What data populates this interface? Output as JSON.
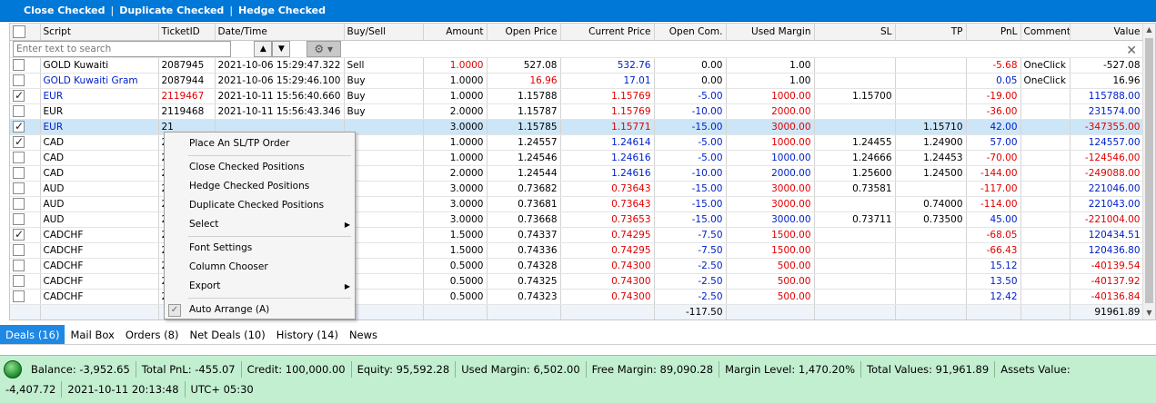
{
  "toolbar": {
    "close_checked": "Close Checked",
    "duplicate_checked": "Duplicate Checked",
    "hedge_checked": "Hedge Checked",
    "separator": "|"
  },
  "columns": [
    "Script",
    "TicketID",
    "Date/Time",
    "Buy/Sell",
    "Amount",
    "Open Price",
    "Current Price",
    "Open Com.",
    "Used Margin",
    "SL",
    "TP",
    "PnL",
    "Comment",
    "Value"
  ],
  "filter": {
    "placeholder": "Enter text to search"
  },
  "rows": [
    {
      "checked": false,
      "script": "GOLD Kuwaiti",
      "ticket": "2087945",
      "datetime": "2021-10-06 15:29:47.322",
      "side": "Sell",
      "amount": "1.0000",
      "open_price": "527.08",
      "current_price": "532.76",
      "open_com": "0.00",
      "used_margin": "1.00",
      "sl": "",
      "tp": "",
      "pnl": "-5.68",
      "comment": "OneClick",
      "value": "-527.08"
    },
    {
      "checked": false,
      "script": "GOLD Kuwaiti Gram",
      "ticket": "2087944",
      "datetime": "2021-10-06 15:29:46.100",
      "side": "Buy",
      "amount": "1.0000",
      "open_price": "16.96",
      "current_price": "17.01",
      "open_com": "0.00",
      "used_margin": "1.00",
      "sl": "",
      "tp": "",
      "pnl": "0.05",
      "comment": "OneClick",
      "value": "16.96"
    },
    {
      "checked": true,
      "script": "EUR",
      "ticket": "2119467",
      "datetime": "2021-10-11 15:56:40.660",
      "side": "Buy",
      "amount": "1.0000",
      "open_price": "1.15788",
      "current_price": "1.15769",
      "open_com": "-5.00",
      "used_margin": "1000.00",
      "sl": "1.15700",
      "tp": "",
      "pnl": "-19.00",
      "comment": "",
      "value": "115788.00"
    },
    {
      "checked": false,
      "script": "EUR",
      "ticket": "2119468",
      "datetime": "2021-10-11 15:56:43.346",
      "side": "Buy",
      "amount": "2.0000",
      "open_price": "1.15787",
      "current_price": "1.15769",
      "open_com": "-10.00",
      "used_margin": "2000.00",
      "sl": "",
      "tp": "",
      "pnl": "-36.00",
      "comment": "",
      "value": "231574.00"
    },
    {
      "checked": true,
      "script": "EUR",
      "ticket": "21",
      "datetime": "",
      "side": "",
      "amount": "3.0000",
      "open_price": "1.15785",
      "current_price": "1.15771",
      "open_com": "-15.00",
      "used_margin": "3000.00",
      "sl": "",
      "tp": "1.15710",
      "pnl": "42.00",
      "comment": "",
      "value": "-347355.00"
    },
    {
      "checked": true,
      "script": "CAD",
      "ticket": "21",
      "datetime": "",
      "side": "",
      "amount": "1.0000",
      "open_price": "1.24557",
      "current_price": "1.24614",
      "open_com": "-5.00",
      "used_margin": "1000.00",
      "sl": "1.24455",
      "tp": "1.24900",
      "pnl": "57.00",
      "comment": "",
      "value": "124557.00"
    },
    {
      "checked": false,
      "script": "CAD",
      "ticket": "21",
      "datetime": "",
      "side": "",
      "amount": "1.0000",
      "open_price": "1.24546",
      "current_price": "1.24616",
      "open_com": "-5.00",
      "used_margin": "1000.00",
      "sl": "1.24666",
      "tp": "1.24453",
      "pnl": "-70.00",
      "comment": "",
      "value": "-124546.00"
    },
    {
      "checked": false,
      "script": "CAD",
      "ticket": "21",
      "datetime": "",
      "side": "",
      "amount": "2.0000",
      "open_price": "1.24544",
      "current_price": "1.24616",
      "open_com": "-10.00",
      "used_margin": "2000.00",
      "sl": "1.25600",
      "tp": "1.24500",
      "pnl": "-144.00",
      "comment": "",
      "value": "-249088.00"
    },
    {
      "checked": false,
      "script": "AUD",
      "ticket": "21",
      "datetime": "",
      "side": "",
      "amount": "3.0000",
      "open_price": "0.73682",
      "current_price": "0.73643",
      "open_com": "-15.00",
      "used_margin": "3000.00",
      "sl": "0.73581",
      "tp": "",
      "pnl": "-117.00",
      "comment": "",
      "value": "221046.00"
    },
    {
      "checked": false,
      "script": "AUD",
      "ticket": "21",
      "datetime": "",
      "side": "",
      "amount": "3.0000",
      "open_price": "0.73681",
      "current_price": "0.73643",
      "open_com": "-15.00",
      "used_margin": "3000.00",
      "sl": "",
      "tp": "0.74000",
      "pnl": "-114.00",
      "comment": "",
      "value": "221043.00"
    },
    {
      "checked": false,
      "script": "AUD",
      "ticket": "21",
      "datetime": "",
      "side": "",
      "amount": "3.0000",
      "open_price": "0.73668",
      "current_price": "0.73653",
      "open_com": "-15.00",
      "used_margin": "3000.00",
      "sl": "0.73711",
      "tp": "0.73500",
      "pnl": "45.00",
      "comment": "",
      "value": "-221004.00"
    },
    {
      "checked": true,
      "script": "CADCHF",
      "ticket": "21",
      "datetime": "",
      "side": "",
      "amount": "1.5000",
      "open_price": "0.74337",
      "current_price": "0.74295",
      "open_com": "-7.50",
      "used_margin": "1500.00",
      "sl": "",
      "tp": "",
      "pnl": "-68.05",
      "comment": "",
      "value": "120434.51"
    },
    {
      "checked": false,
      "script": "CADCHF",
      "ticket": "21",
      "datetime": "",
      "side": "",
      "amount": "1.5000",
      "open_price": "0.74336",
      "current_price": "0.74295",
      "open_com": "-7.50",
      "used_margin": "1500.00",
      "sl": "",
      "tp": "",
      "pnl": "-66.43",
      "comment": "",
      "value": "120436.80"
    },
    {
      "checked": false,
      "script": "CADCHF",
      "ticket": "21",
      "datetime": "",
      "side": "",
      "amount": "0.5000",
      "open_price": "0.74328",
      "current_price": "0.74300",
      "open_com": "-2.50",
      "used_margin": "500.00",
      "sl": "",
      "tp": "",
      "pnl": "15.12",
      "comment": "",
      "value": "-40139.54"
    },
    {
      "checked": false,
      "script": "CADCHF",
      "ticket": "21",
      "datetime": "",
      "side": "",
      "amount": "0.5000",
      "open_price": "0.74325",
      "current_price": "0.74300",
      "open_com": "-2.50",
      "used_margin": "500.00",
      "sl": "",
      "tp": "",
      "pnl": "13.50",
      "comment": "",
      "value": "-40137.92"
    },
    {
      "checked": false,
      "script": "CADCHF",
      "ticket": "21",
      "datetime": "",
      "side": "",
      "amount": "0.5000",
      "open_price": "0.74323",
      "current_price": "0.74300",
      "open_com": "-2.50",
      "used_margin": "500.00",
      "sl": "",
      "tp": "",
      "pnl": "12.42",
      "comment": "",
      "value": "-40136.84"
    }
  ],
  "totals": {
    "open_com": "-117.50",
    "value": "91961.89"
  },
  "context_menu": {
    "place_order": "Place An SL/TP Order",
    "close_checked": "Close Checked Positions",
    "hedge_checked": "Hedge Checked Positions",
    "duplicate_checked": "Duplicate Checked Positions",
    "select": "Select",
    "font_settings": "Font Settings",
    "column_chooser": "Column Chooser",
    "export": "Export",
    "auto_arrange": "Auto Arrange (A)"
  },
  "tabs": [
    {
      "label": "Deals (16)",
      "active": true
    },
    {
      "label": "Mail Box",
      "active": false
    },
    {
      "label": "Orders (8)",
      "active": false
    },
    {
      "label": "Net Deals (10)",
      "active": false
    },
    {
      "label": "History (14)",
      "active": false
    },
    {
      "label": "News",
      "active": false
    }
  ],
  "status": {
    "balance": "Balance:  -3,952.65",
    "total_pnl": "Total PnL:  -455.07",
    "credit": "Credit:  100,000.00",
    "equity": "Equity:  95,592.28",
    "used_margin": "Used Margin:  6,502.00",
    "free_margin": "Free Margin:  89,090.28",
    "margin_level": "Margin Level:  1,470.20%",
    "total_values": "Total Values:  91,961.89",
    "assets_value": "Assets Value:",
    "assets_amount": "-4,407.72",
    "datetime": "2021-10-11 20:13:48",
    "timezone": "UTC+ 05:30"
  },
  "colors": {
    "accent": "#0078d7",
    "status_bg": "#c3efd1",
    "negative": "#e00000",
    "positive": "#0020c8"
  }
}
